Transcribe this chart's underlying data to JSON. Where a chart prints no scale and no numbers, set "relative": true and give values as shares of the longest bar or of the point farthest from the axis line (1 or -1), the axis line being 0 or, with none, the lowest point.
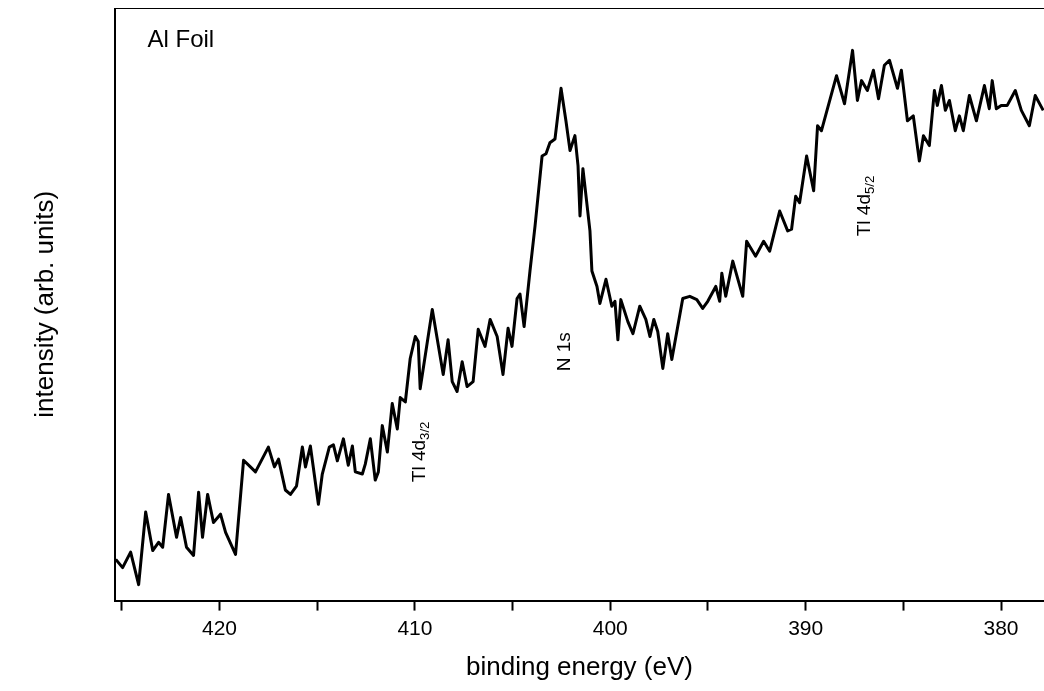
{
  "chart_data": {
    "type": "line",
    "relative": true,
    "xlabel": "binding energy (eV)",
    "ylabel": "intensity (arb. units)",
    "xlim": [
      425.35,
      377.8
    ],
    "xticks": [
      {
        "value": 425,
        "label": null
      },
      420,
      {
        "value": 415,
        "label": null
      },
      410,
      {
        "value": 405,
        "label": null
      },
      400,
      {
        "value": 395,
        "label": null
      },
      390,
      {
        "value": 385,
        "label": null
      },
      380
    ],
    "grid": false,
    "legend": false,
    "marker": "none",
    "line_style": "solid",
    "annotations": [
      "Al Foil",
      "N 1s",
      "Tl 4d$_{3/2}$",
      "Tl 4d$_{5/2}$"
    ],
    "series": [
      {
        "color": "#000000",
        "x": [
          425.31,
          424.96,
          424.55,
          424.14,
          423.78,
          423.42,
          423.12,
          422.91,
          422.61,
          422.2,
          421.99,
          421.69,
          421.33,
          421.07,
          420.87,
          420.61,
          420.31,
          419.95,
          419.69,
          419.18,
          418.77,
          418.42,
          418.16,
          417.5,
          417.19,
          416.98,
          416.63,
          416.37,
          416.06,
          415.76,
          415.6,
          415.35,
          414.94,
          414.74,
          414.38,
          414.17,
          413.97,
          413.66,
          413.41,
          413.2,
          413.05,
          412.69,
          412.54,
          412.28,
          412.03,
          411.87,
          411.67,
          411.41,
          411.16,
          410.9,
          410.75,
          410.49,
          410.24,
          409.98,
          409.83,
          409.73,
          409.11,
          408.55,
          408.3,
          408.09,
          407.84,
          407.58,
          407.33,
          407.02,
          406.76,
          406.41,
          406.15,
          405.79,
          405.49,
          405.23,
          405.03,
          404.77,
          404.62,
          404.41,
          404.11,
          403.85,
          403.49,
          403.29,
          403.09,
          402.83,
          402.52,
          402.27,
          402.06,
          401.81,
          401.65,
          401.55,
          401.4,
          401.04,
          400.94,
          400.68,
          400.53,
          400.22,
          399.92,
          399.76,
          399.61,
          399.46,
          399.1,
          398.84,
          398.49,
          398.18,
          397.97,
          397.77,
          397.57,
          397.31,
          397.06,
          396.85,
          396.29,
          395.93,
          395.57,
          395.27,
          395.01,
          394.6,
          394.4,
          394.29,
          394.09,
          393.73,
          393.22,
          393.02,
          392.56,
          392.15,
          391.84,
          391.33,
          390.92,
          390.72,
          390.51,
          390.31,
          389.95,
          389.59,
          389.39,
          389.19,
          388.42,
          388.01,
          387.6,
          387.35,
          387.14,
          386.84,
          386.53,
          386.27,
          385.97,
          385.71,
          385.3,
          385.1,
          384.79,
          384.49,
          384.18,
          383.97,
          383.67,
          383.41,
          383.26,
          383.05,
          382.85,
          382.64,
          382.34,
          382.13,
          381.93,
          381.62,
          381.26,
          380.85,
          380.6,
          380.45,
          380.24,
          379.99,
          379.68,
          379.27,
          378.96,
          378.55,
          378.25,
          377.84
        ],
        "values": [
          0.075,
          0.06,
          0.088,
          0.029,
          0.161,
          0.091,
          0.106,
          0.097,
          0.193,
          0.115,
          0.151,
          0.097,
          0.082,
          0.197,
          0.115,
          0.193,
          0.142,
          0.157,
          0.124,
          0.084,
          0.255,
          0.243,
          0.234,
          0.279,
          0.243,
          0.257,
          0.201,
          0.193,
          0.208,
          0.279,
          0.243,
          0.281,
          0.175,
          0.23,
          0.279,
          0.283,
          0.254,
          0.294,
          0.246,
          0.281,
          0.234,
          0.23,
          0.248,
          0.294,
          0.219,
          0.234,
          0.318,
          0.27,
          0.358,
          0.312,
          0.369,
          0.361,
          0.44,
          0.48,
          0.471,
          0.385,
          0.529,
          0.411,
          0.474,
          0.398,
          0.38,
          0.434,
          0.389,
          0.398,
          0.493,
          0.462,
          0.511,
          0.48,
          0.411,
          0.495,
          0.462,
          0.549,
          0.557,
          0.498,
          0.599,
          0.681,
          0.808,
          0.812,
          0.832,
          0.839,
          0.931,
          0.872,
          0.818,
          0.845,
          0.79,
          0.699,
          0.785,
          0.672,
          0.599,
          0.571,
          0.54,
          0.584,
          0.535,
          0.544,
          0.474,
          0.547,
          0.507,
          0.485,
          0.535,
          0.511,
          0.48,
          0.511,
          0.489,
          0.422,
          0.485,
          0.438,
          0.549,
          0.553,
          0.547,
          0.531,
          0.544,
          0.571,
          0.544,
          0.595,
          0.553,
          0.617,
          0.553,
          0.653,
          0.626,
          0.653,
          0.635,
          0.708,
          0.672,
          0.675,
          0.735,
          0.723,
          0.808,
          0.745,
          0.863,
          0.854,
          0.954,
          0.903,
          1,
          0.909,
          0.945,
          0.927,
          0.964,
          0.912,
          0.973,
          0.982,
          0.931,
          0.964,
          0.872,
          0.881,
          0.799,
          0.845,
          0.827,
          0.927,
          0.9,
          0.936,
          0.891,
          0.909,
          0.854,
          0.881,
          0.854,
          0.918,
          0.872,
          0.936,
          0.894,
          0.945,
          0.894,
          0.9,
          0.9,
          0.927,
          0.891,
          0.863,
          0.918,
          0.891
        ]
      }
    ]
  }
}
